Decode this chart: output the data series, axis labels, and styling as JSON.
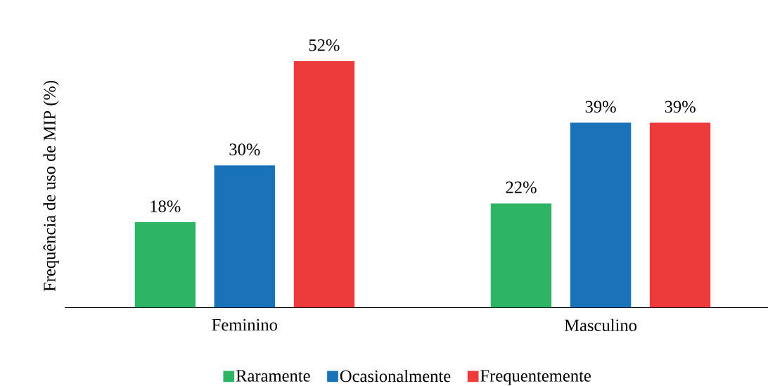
{
  "chart_data": {
    "type": "bar",
    "ylabel": "Frequência de uso de MIP (%)",
    "categories": [
      "Feminino",
      "Masculino"
    ],
    "series": [
      {
        "name": "Raramente",
        "color": "#2db565",
        "values": [
          18,
          22
        ],
        "value_labels": [
          "18%",
          "22%"
        ]
      },
      {
        "name": "Ocasionalmente",
        "color": "#1a72b9",
        "values": [
          30,
          39
        ],
        "value_labels": [
          "30%",
          "39%"
        ]
      },
      {
        "name": "Frequentemente",
        "color": "#ec3b3a",
        "values": [
          52,
          39
        ],
        "value_labels": [
          "52%",
          "39%"
        ]
      }
    ],
    "legend": "bottom"
  }
}
